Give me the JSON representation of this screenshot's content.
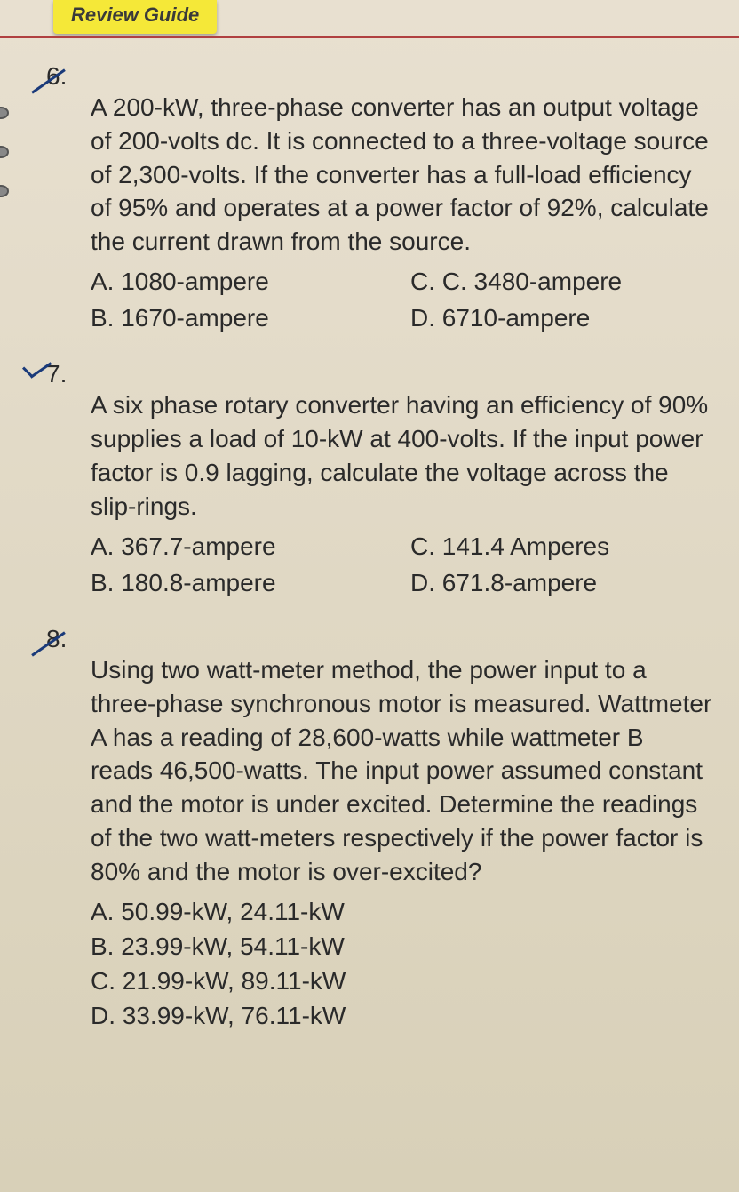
{
  "header": {
    "tab_text": "Review Guide"
  },
  "questions": [
    {
      "number": "6.",
      "text": "A 200-kW, three-phase converter has an output voltage of 200-volts dc. It is connected to a three-voltage source of 2,300-volts. If the converter has a full-load efficiency of 95% and operates at a power factor of 92%, calculate the current drawn from the source.",
      "opts": {
        "a": "A. 1080-ampere",
        "b": "B. 1670-ampere",
        "c": "C. C. 3480-ampere",
        "d": "D. 6710-ampere"
      }
    },
    {
      "number": "7.",
      "text": "A six phase rotary converter having an efficiency of 90% supplies a load of 10-kW at 400-volts. If the input power factor is 0.9 lagging, calculate the voltage across the slip-rings.",
      "opts": {
        "a": "A. 367.7-ampere",
        "b": "B. 180.8-ampere",
        "c": "C. 141.4 Amperes",
        "d": "D. 671.8-ampere"
      }
    },
    {
      "number": "8.",
      "text": "Using two watt-meter method, the power input to a three-phase synchronous motor is measured. Wattmeter A has a reading of 28,600-watts while wattmeter B reads 46,500-watts. The input power assumed constant and the motor is under excited. Determine the readings of the two watt-meters respectively if the power factor is 80% and the motor is over-excited?",
      "opts": {
        "a": "A. 50.99-kW, 24.11-kW",
        "b": "B. 23.99-kW, 54.11-kW",
        "c": "C. 21.99-kW, 89.11-kW",
        "d": "D. 33.99-kW, 76.11-kW"
      }
    }
  ]
}
